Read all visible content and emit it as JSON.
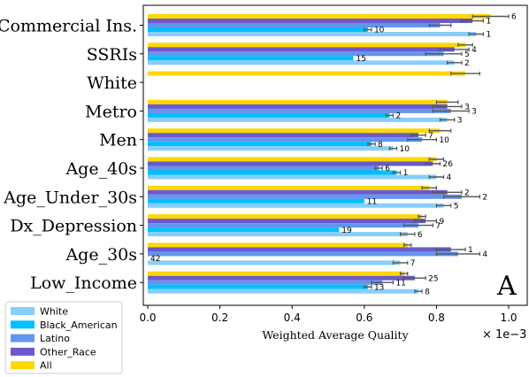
{
  "chart_data": {
    "type": "bar",
    "orientation": "horizontal",
    "panel_letter": "A",
    "xlabel": "Weighted Average Quality",
    "x_scale_note": "× 1e−3",
    "xlim": [
      0,
      1.05
    ],
    "xticks": [
      "0.0",
      "0.2",
      "0.4",
      "0.6",
      "0.8",
      "1.0"
    ],
    "xtick_values": [
      0.0,
      0.2,
      0.4,
      0.6,
      0.8,
      1.0
    ],
    "grid": false,
    "legend_position": "lower-left outside",
    "categories": [
      "Commercial Ins.",
      "SSRIs",
      "White",
      "Metro",
      "Men",
      "Age_40s",
      "Age_Under_30s",
      "Dx_Depression",
      "Age_30s",
      "Low_Income"
    ],
    "series": [
      {
        "name": "White",
        "color": "#87CEFA",
        "values": [
          0.91,
          0.85,
          null,
          0.83,
          0.68,
          0.8,
          0.82,
          0.72,
          0.7,
          0.75
        ],
        "errors": [
          0.02,
          0.02,
          null,
          0.02,
          0.01,
          0.02,
          0.02,
          0.02,
          0.02,
          0.01
        ],
        "labels": [
          "1",
          "2",
          "",
          "3",
          "10",
          "4",
          "5",
          "6",
          "7",
          "8"
        ]
      },
      {
        "name": "Black_American",
        "color": "#00BFFF",
        "values": [
          0.61,
          0.57,
          null,
          0.67,
          0.62,
          0.69,
          0.6,
          0.53,
          0.0,
          0.61
        ],
        "errors": [
          0.01,
          0.0,
          null,
          0.01,
          0.01,
          0.01,
          0.0,
          0.0,
          0.0,
          0.01
        ],
        "labels": [
          "10",
          "15",
          "",
          "2",
          "8",
          "1",
          "11",
          "19",
          "42",
          "13"
        ]
      },
      {
        "name": "Latino",
        "color": "#6495ED",
        "values": [
          0.81,
          0.82,
          null,
          0.84,
          0.76,
          0.64,
          0.87,
          0.75,
          0.86,
          0.65
        ],
        "errors": [
          0.03,
          0.05,
          null,
          0.05,
          0.04,
          0.01,
          0.05,
          0.04,
          0.06,
          0.03
        ],
        "labels": [
          "",
          "5",
          "",
          "3",
          "10",
          "6",
          "2",
          "7",
          "4",
          "11"
        ]
      },
      {
        "name": "Other_Race",
        "color": "#6A5ACD",
        "values": [
          0.9,
          0.85,
          null,
          0.83,
          0.75,
          0.79,
          0.83,
          0.77,
          0.84,
          0.74
        ],
        "errors": [
          0.03,
          0.04,
          null,
          0.04,
          0.02,
          0.02,
          0.04,
          0.03,
          0.04,
          0.03
        ],
        "labels": [
          "1",
          "4",
          "",
          "3",
          "7",
          "26",
          "2",
          "9",
          "1",
          "25"
        ]
      },
      {
        "name": "All",
        "color": "#FFD700",
        "values": [
          0.95,
          0.88,
          0.88,
          0.83,
          0.81,
          0.8,
          0.78,
          0.76,
          0.72,
          0.71
        ],
        "errors": [
          0.05,
          0.02,
          0.04,
          0.03,
          0.03,
          0.02,
          0.02,
          0.01,
          0.01,
          0.01
        ],
        "labels": [
          "6",
          "",
          "",
          "",
          "",
          "",
          "",
          "",
          "",
          ""
        ]
      }
    ]
  }
}
